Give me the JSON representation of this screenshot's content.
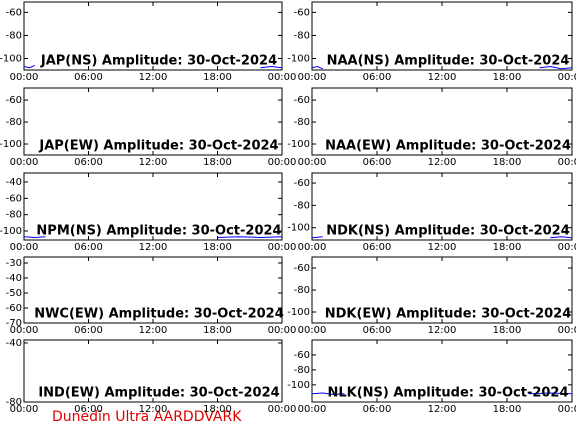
{
  "chart_data": [
    {
      "type": "line",
      "title": "JAP(NS) Amplitude: 30-Oct-2024",
      "xlim": [
        0,
        24
      ],
      "ylim": [
        -110,
        -51
      ],
      "yticks": [
        -60,
        -80,
        -100
      ],
      "xticks": [
        {
          "value": 0,
          "label": "00:00"
        },
        {
          "value": 6,
          "label": "06:00"
        },
        {
          "value": 12,
          "label": "12:00"
        },
        {
          "value": 18,
          "label": "18:00"
        },
        {
          "value": 24,
          "label": "00:00"
        }
      ],
      "series": [
        {
          "color": "#0000ff",
          "x": [
            0,
            0.5,
            1,
            1.5,
            22,
            23,
            24
          ],
          "values": [
            -107,
            -108,
            -106,
            null,
            -108,
            -107,
            -108
          ]
        }
      ]
    },
    {
      "type": "line",
      "title": "NAA(NS) Amplitude: 30-Oct-2024",
      "xlim": [
        0,
        24
      ],
      "ylim": [
        -110,
        -51
      ],
      "yticks": [
        -60,
        -80,
        -100
      ],
      "xticks": [
        {
          "value": 0,
          "label": "00:00"
        },
        {
          "value": 6,
          "label": "06:00"
        },
        {
          "value": 12,
          "label": "12:00"
        },
        {
          "value": 18,
          "label": "18:00"
        },
        {
          "value": 24,
          "label": "00:00"
        }
      ],
      "series": [
        {
          "color": "#0000ff",
          "x": [
            0,
            0.5,
            1,
            1.5,
            21,
            22,
            23,
            24
          ],
          "values": [
            -108,
            -107,
            -109,
            null,
            -108,
            -107,
            -109,
            -108
          ]
        }
      ]
    },
    {
      "type": "line",
      "title": "JAP(EW) Amplitude: 30-Oct-2024",
      "xlim": [
        0,
        24
      ],
      "ylim": [
        -110,
        -49
      ],
      "yticks": [
        -60,
        -80,
        -100
      ],
      "xticks": [
        {
          "value": 0,
          "label": "00:00"
        },
        {
          "value": 6,
          "label": "06:00"
        },
        {
          "value": 12,
          "label": "12:00"
        },
        {
          "value": 18,
          "label": "18:00"
        },
        {
          "value": 24,
          "label": "00:00"
        }
      ],
      "series": []
    },
    {
      "type": "line",
      "title": "NAA(EW) Amplitude: 30-Oct-2024",
      "xlim": [
        0,
        24
      ],
      "ylim": [
        -110,
        -49
      ],
      "yticks": [
        -60,
        -80,
        -100
      ],
      "xticks": [
        {
          "value": 0,
          "label": "00:00"
        },
        {
          "value": 6,
          "label": "06:00"
        },
        {
          "value": 12,
          "label": "12:00"
        },
        {
          "value": 18,
          "label": "18:00"
        },
        {
          "value": 24,
          "label": "00:00"
        }
      ],
      "series": []
    },
    {
      "type": "line",
      "title": "NPM(NS) Amplitude: 30-Oct-2024",
      "xlim": [
        0,
        24
      ],
      "ylim": [
        -111,
        -29
      ],
      "yticks": [
        -40,
        -60,
        -80,
        -100
      ],
      "xticks": [
        {
          "value": 0,
          "label": "00:00"
        },
        {
          "value": 6,
          "label": "06:00"
        },
        {
          "value": 12,
          "label": "12:00"
        },
        {
          "value": 18,
          "label": "18:00"
        },
        {
          "value": 24,
          "label": "00:00"
        }
      ],
      "series": [
        {
          "color": "#0000ff",
          "x": [
            0,
            1,
            2,
            3,
            18,
            20,
            22,
            24
          ],
          "values": [
            -107,
            -108,
            -107,
            null,
            -108,
            -107,
            -108,
            -107
          ]
        }
      ]
    },
    {
      "type": "line",
      "title": "NDK(NS) Amplitude: 30-Oct-2024",
      "xlim": [
        0,
        24
      ],
      "ylim": [
        -111,
        -51
      ],
      "yticks": [
        -60,
        -80,
        -100
      ],
      "xticks": [
        {
          "value": 0,
          "label": "00:00"
        },
        {
          "value": 6,
          "label": "06:00"
        },
        {
          "value": 12,
          "label": "12:00"
        },
        {
          "value": 18,
          "label": "18:00"
        },
        {
          "value": 24,
          "label": "00:00"
        }
      ],
      "series": [
        {
          "color": "#0000ff",
          "x": [
            0,
            1,
            2,
            22,
            23,
            24
          ],
          "values": [
            -109,
            -108,
            null,
            -109,
            -108,
            -109
          ]
        }
      ]
    },
    {
      "type": "line",
      "title": "NWC(EW) Amplitude: 30-Oct-2024",
      "xlim": [
        0,
        24
      ],
      "ylim": [
        -70,
        -26
      ],
      "yticks": [
        -30,
        -40,
        -50,
        -60,
        -70
      ],
      "xticks": [
        {
          "value": 0,
          "label": "00:00"
        },
        {
          "value": 6,
          "label": "06:00"
        },
        {
          "value": 12,
          "label": "12:00"
        },
        {
          "value": 18,
          "label": "18:00"
        },
        {
          "value": 24,
          "label": "00:00"
        }
      ],
      "series": []
    },
    {
      "type": "line",
      "title": "NDK(EW) Amplitude: 30-Oct-2024",
      "xlim": [
        0,
        24
      ],
      "ylim": [
        -110,
        -50
      ],
      "yticks": [
        -60,
        -80,
        -100
      ],
      "xticks": [
        {
          "value": 0,
          "label": "00:00"
        },
        {
          "value": 6,
          "label": "06:00"
        },
        {
          "value": 12,
          "label": "12:00"
        },
        {
          "value": 18,
          "label": "18:00"
        },
        {
          "value": 24,
          "label": "00:00"
        }
      ],
      "series": []
    },
    {
      "type": "line",
      "title": "IND(EW) Amplitude: 30-Oct-2024",
      "xlim": [
        0,
        24
      ],
      "ylim": [
        -80,
        -38
      ],
      "yticks": [
        -40,
        -80
      ],
      "xticks": [
        {
          "value": 0,
          "label": "00:00"
        },
        {
          "value": 6,
          "label": "06:00"
        },
        {
          "value": 12,
          "label": "12:00"
        },
        {
          "value": 18,
          "label": "18:00"
        },
        {
          "value": 24,
          "label": "00:00"
        }
      ],
      "series": []
    },
    {
      "type": "line",
      "title": "NLK(NS) Amplitude: 30-Oct-2024",
      "xlim": [
        0,
        24
      ],
      "ylim": [
        -123,
        -40
      ],
      "yticks": [
        -60,
        -80,
        -100
      ],
      "xticks": [
        {
          "value": 0,
          "label": "00:00"
        },
        {
          "value": 6,
          "label": "06:00"
        },
        {
          "value": 12,
          "label": "12:00"
        },
        {
          "value": 18,
          "label": "18:00"
        },
        {
          "value": 24,
          "label": "00:00"
        }
      ],
      "series": [
        {
          "color": "#0000ff",
          "x": [
            0,
            1,
            2,
            3,
            4,
            20,
            22,
            24
          ],
          "values": [
            -112,
            -111,
            -113,
            -112,
            null,
            -112,
            -111,
            -112
          ]
        }
      ]
    }
  ],
  "footer": "Dunedin Ultra AARDDVARK"
}
